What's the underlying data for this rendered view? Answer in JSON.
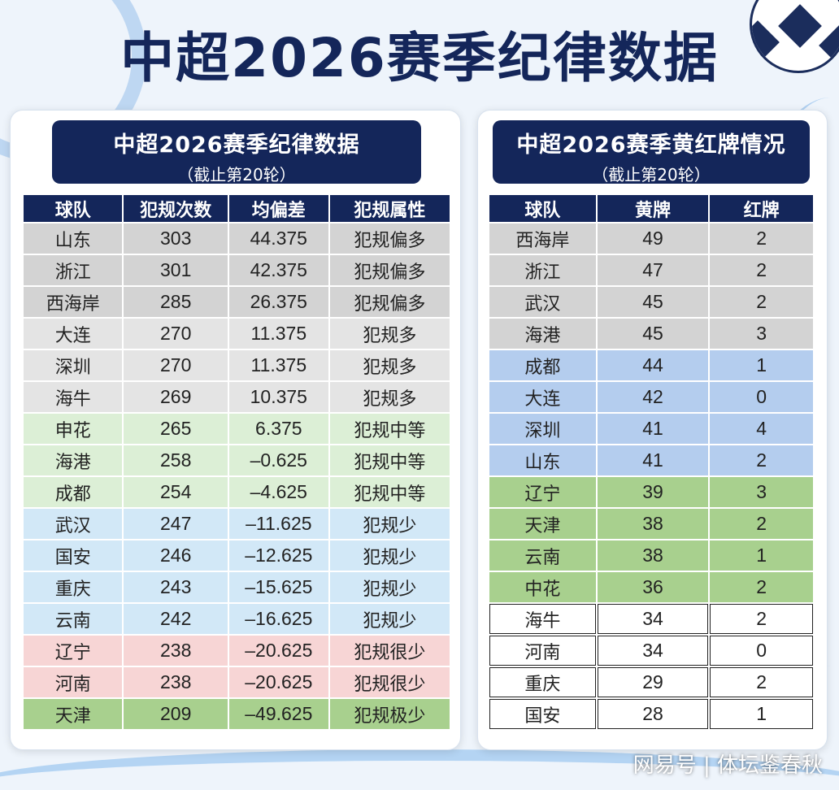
{
  "main_title": "中超2026赛季纪律数据",
  "left_panel": {
    "title": "中超2026赛季纪律数据",
    "subtitle": "（截止第20轮）",
    "headers": [
      "球队",
      "犯规次数",
      "均偏差",
      "犯规属性"
    ],
    "rows": [
      {
        "team": "山东",
        "fouls": "303",
        "dev": "44.375",
        "attr": "犯规偏多",
        "group": "g1"
      },
      {
        "team": "浙江",
        "fouls": "301",
        "dev": "42.375",
        "attr": "犯规偏多",
        "group": "g1"
      },
      {
        "team": "西海岸",
        "fouls": "285",
        "dev": "26.375",
        "attr": "犯规偏多",
        "group": "g1"
      },
      {
        "team": "大连",
        "fouls": "270",
        "dev": "11.375",
        "attr": "犯规多",
        "group": "g2"
      },
      {
        "team": "深圳",
        "fouls": "270",
        "dev": "11.375",
        "attr": "犯规多",
        "group": "g2"
      },
      {
        "team": "海牛",
        "fouls": "269",
        "dev": "10.375",
        "attr": "犯规多",
        "group": "g2"
      },
      {
        "team": "申花",
        "fouls": "265",
        "dev": "6.375",
        "attr": "犯规中等",
        "group": "g3"
      },
      {
        "team": "海港",
        "fouls": "258",
        "dev": "–0.625",
        "attr": "犯规中等",
        "group": "g3"
      },
      {
        "team": "成都",
        "fouls": "254",
        "dev": "–4.625",
        "attr": "犯规中等",
        "group": "g3"
      },
      {
        "team": "武汉",
        "fouls": "247",
        "dev": "–11.625",
        "attr": "犯规少",
        "group": "g4"
      },
      {
        "team": "国安",
        "fouls": "246",
        "dev": "–12.625",
        "attr": "犯规少",
        "group": "g4"
      },
      {
        "team": "重庆",
        "fouls": "243",
        "dev": "–15.625",
        "attr": "犯规少",
        "group": "g4"
      },
      {
        "team": "云南",
        "fouls": "242",
        "dev": "–16.625",
        "attr": "犯规少",
        "group": "g4"
      },
      {
        "team": "辽宁",
        "fouls": "238",
        "dev": "–20.625",
        "attr": "犯规很少",
        "group": "g5"
      },
      {
        "team": "河南",
        "fouls": "238",
        "dev": "–20.625",
        "attr": "犯规很少",
        "group": "g5"
      },
      {
        "team": "天津",
        "fouls": "209",
        "dev": "–49.625",
        "attr": "犯规极少",
        "group": "g6"
      }
    ]
  },
  "right_panel": {
    "title": "中超2026赛季黄红牌情况",
    "subtitle": "（截止第20轮）",
    "headers": [
      "球队",
      "黄牌",
      "红牌"
    ],
    "rows": [
      {
        "team": "西海岸",
        "yellow": "49",
        "red": "2",
        "group": "r1"
      },
      {
        "team": "浙江",
        "yellow": "47",
        "red": "2",
        "group": "r1"
      },
      {
        "team": "武汉",
        "yellow": "45",
        "red": "2",
        "group": "r1"
      },
      {
        "team": "海港",
        "yellow": "45",
        "red": "3",
        "group": "r1"
      },
      {
        "team": "成都",
        "yellow": "44",
        "red": "1",
        "group": "r2"
      },
      {
        "team": "大连",
        "yellow": "42",
        "red": "0",
        "group": "r2"
      },
      {
        "team": "深圳",
        "yellow": "41",
        "red": "4",
        "group": "r2"
      },
      {
        "team": "山东",
        "yellow": "41",
        "red": "2",
        "group": "r2"
      },
      {
        "team": "辽宁",
        "yellow": "39",
        "red": "3",
        "group": "r3"
      },
      {
        "team": "天津",
        "yellow": "38",
        "red": "2",
        "group": "r3"
      },
      {
        "team": "云南",
        "yellow": "38",
        "red": "1",
        "group": "r3"
      },
      {
        "team": "中花",
        "yellow": "36",
        "red": "2",
        "group": "r3"
      },
      {
        "team": "海牛",
        "yellow": "34",
        "red": "2",
        "group": "r4"
      },
      {
        "team": "河南",
        "yellow": "34",
        "red": "0",
        "group": "r4"
      },
      {
        "team": "重庆",
        "yellow": "29",
        "red": "2",
        "group": "r4"
      },
      {
        "team": "国安",
        "yellow": "28",
        "red": "1",
        "group": "r4"
      }
    ]
  },
  "watermark": "网易号 | 体坛鉴春秋"
}
